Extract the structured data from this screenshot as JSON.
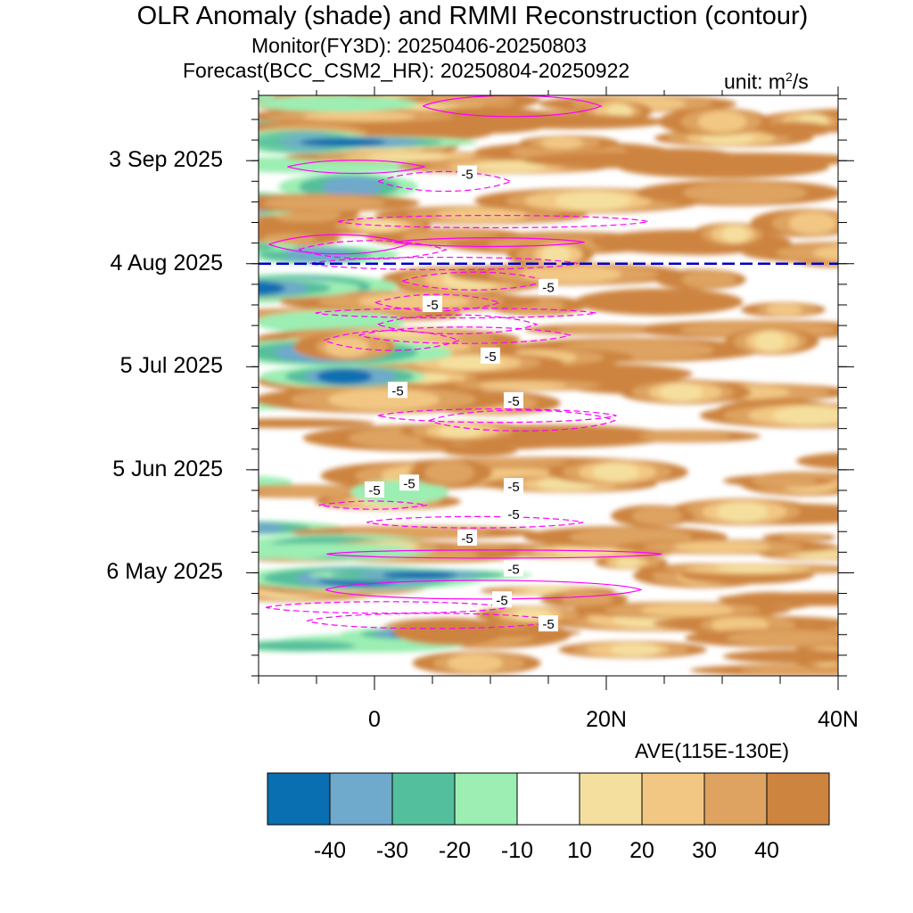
{
  "title": "OLR Anomaly (shade) and RMMI Reconstruction (contour)",
  "subtitle_monitor": "Monitor(FY3D): 20250406-20250803",
  "subtitle_forecast": "Forecast(BCC_CSM2_HR): 20250804-20250922",
  "unit_prefix": "unit: m",
  "unit_exp": "2",
  "unit_suffix": "/s",
  "x_axis_label": "AVE(115E-130E)",
  "chart_data": {
    "type": "heatmap",
    "title": "OLR Anomaly (shade) and RMMI Reconstruction (contour)",
    "xlabel": "AVE(115E-130E)",
    "x_range": [
      -10,
      40
    ],
    "x_ticks": [
      {
        "value": 0,
        "label": "0"
      },
      {
        "value": 20,
        "label": "20N"
      },
      {
        "value": 40,
        "label": "40N"
      }
    ],
    "y_range": [
      "2025-04-06",
      "2025-09-22"
    ],
    "y_ticks": [
      {
        "value": "2025-05-06",
        "label": "6 May 2025"
      },
      {
        "value": "2025-06-05",
        "label": "5 Jun 2025"
      },
      {
        "value": "2025-07-05",
        "label": "5 Jul 2025"
      },
      {
        "value": "2025-08-04",
        "label": "4 Aug 2025"
      },
      {
        "value": "2025-09-03",
        "label": "3 Sep 2025"
      }
    ],
    "forecast_start_line": "2025-08-04",
    "colorbar_levels": [
      -40,
      -30,
      -20,
      -10,
      10,
      20,
      30,
      40
    ],
    "colorbar_colors": [
      "#0a6fb0",
      "#6fa9cb",
      "#54bf9c",
      "#9ceeb2",
      "#ffffff",
      "#f5df9e",
      "#f2c783",
      "#dea360",
      "#cd843f"
    ],
    "contour_color": "#ff00ff",
    "forecast_line_color": "#0000cc",
    "contour_labels": [
      {
        "x": 8,
        "y": "2025-08-30",
        "label": "-5"
      },
      {
        "x": 15,
        "y": "2025-07-28",
        "label": "-5"
      },
      {
        "x": 5,
        "y": "2025-07-23",
        "label": "-5"
      },
      {
        "x": 10,
        "y": "2025-07-08",
        "label": "-5"
      },
      {
        "x": 2,
        "y": "2025-06-28",
        "label": "-5"
      },
      {
        "x": 12,
        "y": "2025-06-25",
        "label": "-5"
      },
      {
        "x": 3,
        "y": "2025-06-01",
        "label": "-5"
      },
      {
        "x": 12,
        "y": "2025-05-31",
        "label": "-5"
      },
      {
        "x": 0,
        "y": "2025-05-30",
        "label": "-5"
      },
      {
        "x": 12,
        "y": "2025-05-23",
        "label": "-5"
      },
      {
        "x": 8,
        "y": "2025-05-16",
        "label": "-5"
      },
      {
        "x": 12,
        "y": "2025-05-07",
        "label": "-5"
      },
      {
        "x": 11,
        "y": "2025-04-28",
        "label": "-5"
      },
      {
        "x": 15,
        "y": "2025-04-21",
        "label": "-5"
      }
    ]
  }
}
